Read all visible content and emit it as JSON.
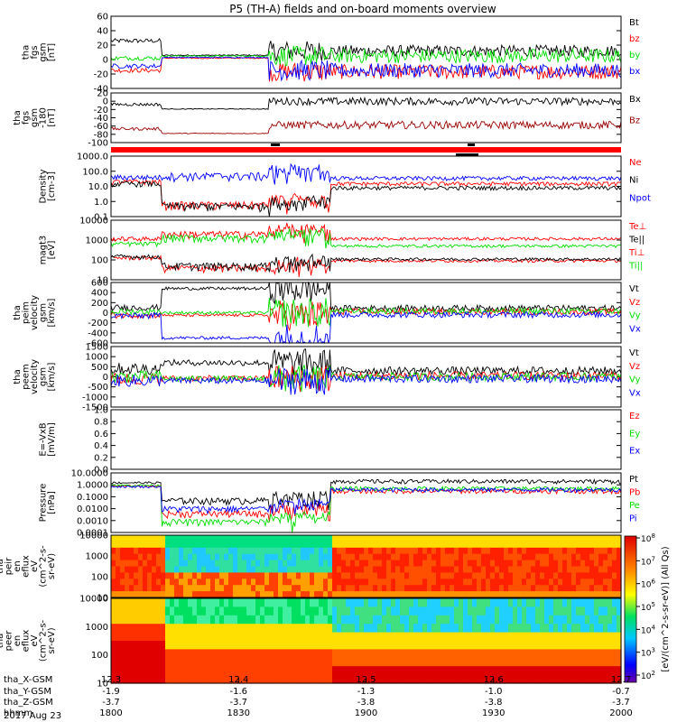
{
  "title": "P5 (TH-A) fields and on-board moments overview",
  "date": "2017 Aug 23",
  "colors": {
    "black": "#000000",
    "red": "#ff0000",
    "green": "#00dd00",
    "blue": "#0000ff",
    "darkred": "#990000",
    "bright_green": "#22ee22"
  },
  "chart_data": [
    {
      "type": "line",
      "ylabel": [
        "tha",
        "fgs",
        "gsm",
        "[nT]"
      ],
      "yticks": [
        "60",
        "40",
        "20",
        "0",
        "-20",
        "-40"
      ],
      "ylim": [
        -40,
        60
      ],
      "series": [
        {
          "name": "Bt",
          "color": "#000000"
        },
        {
          "name": "bz",
          "color": "#ff0000"
        },
        {
          "name": "by",
          "color": "#00dd00"
        },
        {
          "name": "bx",
          "color": "#0000ff"
        }
      ]
    },
    {
      "type": "line",
      "ylabel": [
        "tha",
        "fgs",
        "gsm",
        "-180",
        "[nT]"
      ],
      "yticks": [
        "20",
        "0",
        "-20",
        "-40",
        "-60",
        "-80",
        "-100"
      ],
      "ylim": [
        -110,
        20
      ],
      "series": [
        {
          "name": "Bx",
          "color": "#000000"
        },
        {
          "name": "Bz",
          "color": "#990000"
        }
      ]
    },
    {
      "type": "line",
      "ylabel": [
        "Density",
        "[cm-3]"
      ],
      "yticks": [
        "1000.0",
        "100.0",
        "10.0",
        "1.0",
        "0.1"
      ],
      "ylim": [
        0.1,
        1000
      ],
      "log": true,
      "series": [
        {
          "name": "Ne",
          "color": "#ff0000"
        },
        {
          "name": "Ni",
          "color": "#000000"
        },
        {
          "name": "Npot",
          "color": "#0000ff"
        }
      ]
    },
    {
      "type": "line",
      "ylabel": [
        "magt3",
        "[eV]"
      ],
      "yticks": [
        "10000",
        "1000",
        "100",
        "10"
      ],
      "ylim": [
        3,
        10000
      ],
      "log": true,
      "series": [
        {
          "name": "Te⊥",
          "color": "#ff0000"
        },
        {
          "name": "Te||",
          "color": "#000000"
        },
        {
          "name": "Ti⊥",
          "color": "#ff0000"
        },
        {
          "name": "Ti||",
          "color": "#00dd00"
        }
      ]
    },
    {
      "type": "line",
      "ylabel": [
        "tha",
        "peim",
        "velocity",
        "gsm",
        "[km/s]"
      ],
      "yticks": [
        "600",
        "400",
        "200",
        "0",
        "-200",
        "-400",
        "-600"
      ],
      "ylim": [
        -600,
        600
      ],
      "series": [
        {
          "name": "Vt",
          "color": "#000000"
        },
        {
          "name": "Vz",
          "color": "#ff0000"
        },
        {
          "name": "Vy",
          "color": "#00dd00"
        },
        {
          "name": "Vx",
          "color": "#0000ff"
        }
      ]
    },
    {
      "type": "line",
      "ylabel": [
        "tha",
        "peem",
        "velocity",
        "gsm",
        "[km/s]"
      ],
      "yticks": [
        "1500",
        "1000",
        "500",
        "0",
        "-500",
        "-1000",
        "-1500"
      ],
      "ylim": [
        -1500,
        1500
      ],
      "series": [
        {
          "name": "Vt",
          "color": "#000000"
        },
        {
          "name": "Vz",
          "color": "#ff0000"
        },
        {
          "name": "Vy",
          "color": "#00dd00"
        },
        {
          "name": "Vx",
          "color": "#0000ff"
        }
      ]
    },
    {
      "type": "line",
      "ylabel": [
        "E=-VxB",
        "[mV/m]"
      ],
      "yticks": [
        "1.0",
        "0.8",
        "0.6",
        "0.4",
        "0.2",
        "0.0"
      ],
      "ylim": [
        0,
        1
      ],
      "series": [
        {
          "name": "Ez",
          "color": "#ff0000"
        },
        {
          "name": "Ey",
          "color": "#00dd00"
        },
        {
          "name": "Ex",
          "color": "#0000ff"
        }
      ]
    },
    {
      "type": "line",
      "ylabel": [
        "Pressure",
        "[nPa]"
      ],
      "yticks": [
        "10.0000",
        "1.0000",
        "0.1000",
        "0.0100",
        "0.0010",
        "0.0001"
      ],
      "ylim": [
        0.0001,
        10
      ],
      "log": true,
      "series": [
        {
          "name": "Pt",
          "color": "#000000"
        },
        {
          "name": "Pb",
          "color": "#ff0000"
        },
        {
          "name": "Pe",
          "color": "#00dd00"
        },
        {
          "name": "Pi",
          "color": "#0000ff"
        }
      ]
    },
    {
      "type": "heatmap",
      "ylabel": [
        "tha",
        "peir",
        "en",
        "eflux",
        "eV",
        "(cm^2-s-",
        "sr-eV)"
      ],
      "yticks": [
        "10000",
        "1000",
        "100",
        "10"
      ],
      "ylim": [
        5,
        30000
      ],
      "log": true
    },
    {
      "type": "heatmap",
      "ylabel": [
        "tha",
        "peer",
        "en",
        "eflux",
        "eV",
        "(cm^2-s-",
        "sr-eV)"
      ],
      "yticks": [
        "10000",
        "1000",
        "100",
        "10"
      ],
      "ylim": [
        5,
        30000
      ],
      "log": true
    }
  ],
  "colorbar": {
    "label": "[eV/(cm^2-s-sr-eV)] (All Qs)",
    "ticks": [
      {
        "base": "10",
        "exp": "8"
      },
      {
        "base": "10",
        "exp": "7"
      },
      {
        "base": "10",
        "exp": "6"
      },
      {
        "base": "10",
        "exp": "5"
      },
      {
        "base": "10",
        "exp": "4"
      },
      {
        "base": "10",
        "exp": "3"
      },
      {
        "base": "10",
        "exp": "2"
      }
    ]
  },
  "xaxis": {
    "rows": [
      {
        "label": "tha_X-GSM",
        "values": [
          "12.3",
          "12.4",
          "12.5",
          "12.6",
          "12.7"
        ]
      },
      {
        "label": "tha_Y-GSM",
        "values": [
          "-1.9",
          "-1.6",
          "-1.3",
          "-1.0",
          "-0.7"
        ]
      },
      {
        "label": "tha_Z-GSM",
        "values": [
          "-3.7",
          "-3.7",
          "-3.8",
          "-3.8",
          "-3.7"
        ]
      },
      {
        "label": "hhmm",
        "values": [
          "1800",
          "1830",
          "1900",
          "1930",
          "2000"
        ]
      }
    ]
  }
}
